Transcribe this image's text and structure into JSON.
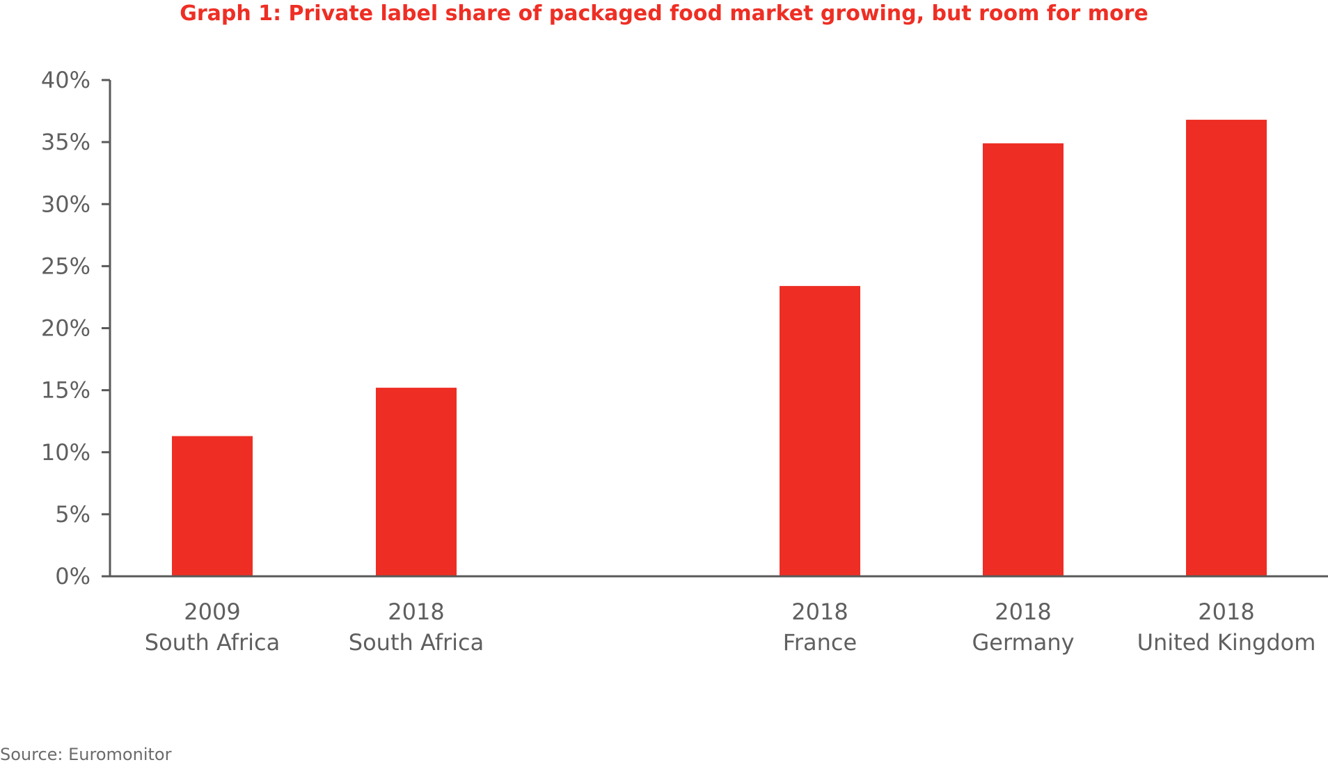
{
  "chart_data": {
    "type": "bar",
    "title": "Graph 1: Private label share of packaged food market growing, but room for more",
    "categories": [
      {
        "year": "2009",
        "country": "South Africa"
      },
      {
        "year": "2018",
        "country": "South Africa"
      },
      {
        "year": "2018",
        "country": "France"
      },
      {
        "year": "2018",
        "country": "Germany"
      },
      {
        "year": "2018",
        "country": "United Kingdom"
      }
    ],
    "values": [
      11.3,
      15.2,
      23.4,
      34.9,
      36.8
    ],
    "ylim": [
      0,
      40
    ],
    "y_ticks": [
      0,
      5,
      10,
      15,
      20,
      25,
      30,
      35,
      40
    ],
    "y_tick_labels": [
      "0%",
      "5%",
      "10%",
      "15%",
      "20%",
      "25%",
      "30%",
      "35%",
      "40%"
    ],
    "xlabel": "",
    "ylabel": "",
    "grid": false,
    "bar_color": "#ee2e24",
    "axis_color": "#595959",
    "source": "Source: Euromonitor"
  }
}
